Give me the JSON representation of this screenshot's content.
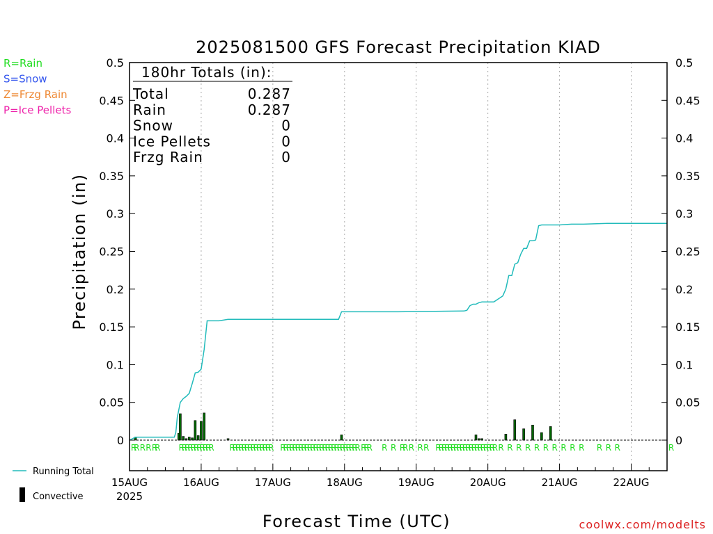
{
  "title": "2025081500 GFS Forecast Precipitation KIAD",
  "legend_types": [
    {
      "label": "R=Rain",
      "color": "#22dd22"
    },
    {
      "label": "S=Snow",
      "color": "#3355ee"
    },
    {
      "label": "Z=Frzg Rain",
      "color": "#ee8833"
    },
    {
      "label": "P=Ice Pellets",
      "color": "#ee22aa"
    }
  ],
  "totals": {
    "header": "180hr Totals (in):",
    "rows": [
      {
        "label": "Total",
        "value": "0.287"
      },
      {
        "label": "Rain",
        "value": "0.287"
      },
      {
        "label": "Snow",
        "value": "0"
      },
      {
        "label": "Ice Pellets",
        "value": "0"
      },
      {
        "label": "Frzg Rain",
        "value": "0"
      }
    ]
  },
  "bottom_legend": {
    "running_total": "Running Total",
    "convective": "Convective",
    "running_total_color": "#22bbbb",
    "convective_color": "#000000"
  },
  "credit": "coolwx.com/modelts",
  "credit_color": "#dd2222",
  "colors": {
    "running_total": "#22bbbb",
    "bar_fill": "#006600",
    "bar_convective": "#000000",
    "rain_marker": "#22dd22"
  },
  "chart_data": {
    "type": "bar+line",
    "title": "2025081500 GFS Forecast Precipitation KIAD",
    "xlabel": "Forecast Time (UTC)",
    "ylabel": "Precipitation (in)",
    "x_unit": "forecast hour",
    "xlim": [
      0,
      180
    ],
    "ylim": [
      0,
      0.5
    ],
    "y_ticks": [
      "0",
      "0.05",
      "0.1",
      "0.15",
      "0.2",
      "0.25",
      "0.3",
      "0.35",
      "0.4",
      "0.45",
      "0.5"
    ],
    "y_tick_values": [
      0,
      0.05,
      0.1,
      0.15,
      0.2,
      0.25,
      0.3,
      0.35,
      0.4,
      0.45,
      0.5
    ],
    "x_ticks": [
      {
        "hour": 0,
        "label": "15AUG",
        "sublabel": "2025"
      },
      {
        "hour": 24,
        "label": "16AUG"
      },
      {
        "hour": 48,
        "label": "17AUG"
      },
      {
        "hour": 72,
        "label": "18AUG"
      },
      {
        "hour": 96,
        "label": "19AUG"
      },
      {
        "hour": 120,
        "label": "20AUG"
      },
      {
        "hour": 144,
        "label": "21AUG"
      },
      {
        "hour": 168,
        "label": "22AUG"
      }
    ],
    "grid": "vertical dotted at day boundaries",
    "series": [
      {
        "name": "Running Total",
        "kind": "line",
        "x": [
          0,
          2,
          6,
          14,
          15,
          15.5,
          16,
          17,
          18,
          19,
          20,
          21,
          22,
          23,
          24,
          25,
          26,
          30,
          33,
          36,
          60,
          70,
          70.5,
          71,
          72,
          90,
          112,
          113,
          114,
          115,
          116,
          117,
          118,
          120,
          122,
          125,
          126,
          127,
          128,
          129,
          130,
          131,
          132,
          133,
          134,
          135,
          136,
          137,
          138,
          139,
          140,
          141,
          142,
          143,
          144,
          148,
          152,
          160,
          180
        ],
        "y": [
          0,
          0.004,
          0.004,
          0.004,
          0.004,
          0.01,
          0.03,
          0.05,
          0.055,
          0.058,
          0.062,
          0.075,
          0.089,
          0.09,
          0.094,
          0.12,
          0.158,
          0.158,
          0.16,
          0.16,
          0.16,
          0.16,
          0.165,
          0.17,
          0.17,
          0.17,
          0.171,
          0.172,
          0.178,
          0.18,
          0.18,
          0.182,
          0.183,
          0.183,
          0.183,
          0.191,
          0.2,
          0.218,
          0.218,
          0.233,
          0.235,
          0.246,
          0.254,
          0.254,
          0.264,
          0.264,
          0.265,
          0.284,
          0.285,
          0.285,
          0.285,
          0.285,
          0.285,
          0.285,
          0.285,
          0.286,
          0.286,
          0.287,
          0.287
        ]
      },
      {
        "name": "Precipitation",
        "kind": "bar",
        "x": [
          2,
          16.5,
          17,
          18,
          19,
          20,
          21,
          22,
          23,
          24,
          25,
          33,
          71,
          116,
          117,
          118,
          126,
          129,
          132,
          135,
          138,
          141
        ],
        "y": [
          0.004,
          0.009,
          0.035,
          0.005,
          0.002,
          0.004,
          0.003,
          0.026,
          0.006,
          0.025,
          0.036,
          0.002,
          0.007,
          0.007,
          0.002,
          0.002,
          0.008,
          0.027,
          0.015,
          0.02,
          0.01,
          0.018
        ]
      }
    ],
    "precip_type_markers": {
      "label": "R",
      "hours": [
        0,
        1,
        3,
        5,
        7,
        8,
        16,
        17,
        18,
        19,
        20,
        21,
        22,
        23,
        24,
        25,
        26,
        33,
        34,
        35,
        36,
        37,
        38,
        39,
        40,
        41,
        42,
        43,
        44,
        45,
        46,
        50,
        51,
        52,
        53,
        54,
        55,
        56,
        57,
        58,
        59,
        60,
        61,
        62,
        63,
        64,
        65,
        66,
        67,
        68,
        69,
        70,
        71,
        72,
        73,
        74,
        75,
        77,
        78,
        79,
        84,
        87,
        90,
        91,
        93,
        96,
        98,
        102,
        103,
        104,
        105,
        106,
        107,
        108,
        109,
        110,
        111,
        112,
        113,
        114,
        115,
        116,
        117,
        118,
        119,
        120,
        121,
        123,
        126,
        129,
        132,
        135,
        138,
        141,
        144,
        147,
        150,
        156,
        159,
        162,
        180
      ]
    }
  }
}
